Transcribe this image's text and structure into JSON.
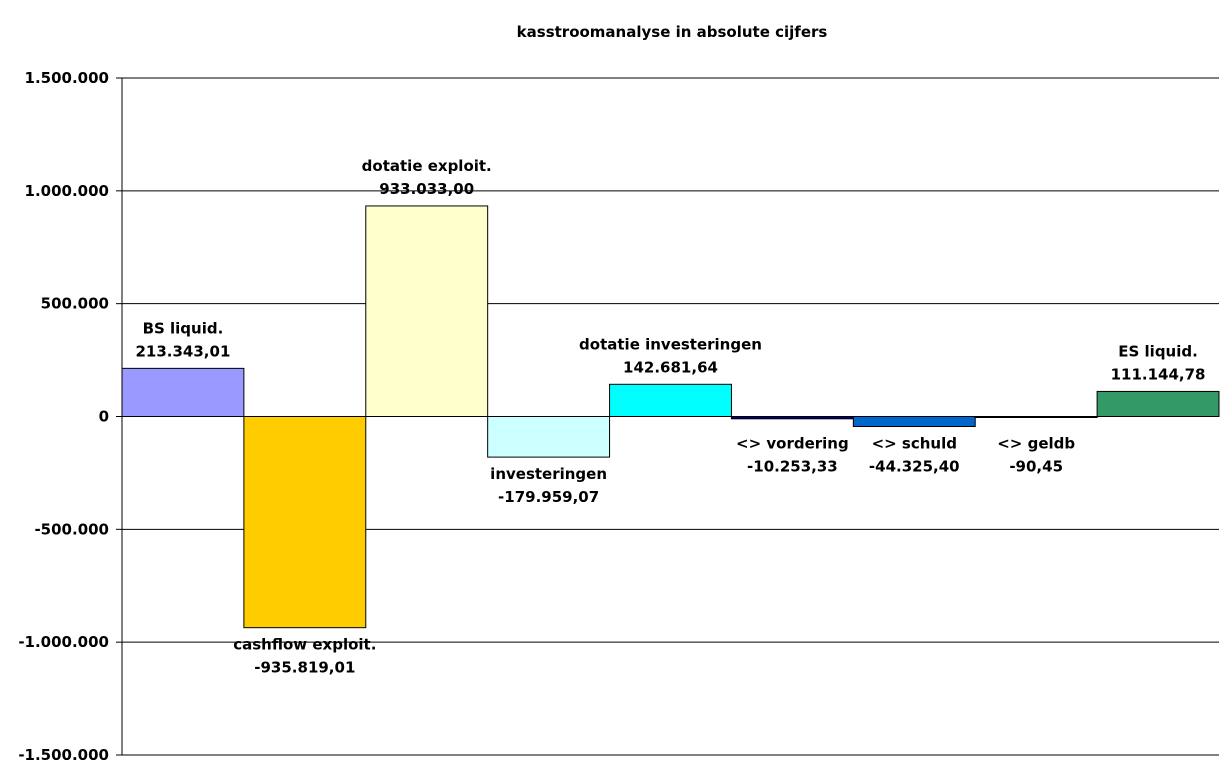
{
  "chart_data": {
    "type": "bar",
    "title": "kasstroomanalyse in absolute cijfers",
    "xlabel": "",
    "ylabel": "",
    "ylim": [
      -1500000,
      1500000
    ],
    "yticks": [
      {
        "value": 1500000,
        "label": "1.500.000"
      },
      {
        "value": 1000000,
        "label": "1.000.000"
      },
      {
        "value": 500000,
        "label": "500.000"
      },
      {
        "value": 0,
        "label": "0"
      },
      {
        "value": -500000,
        "label": "-500.000"
      },
      {
        "value": -1000000,
        "label": "-1.000.000"
      },
      {
        "value": -1500000,
        "label": "-1.500.000"
      }
    ],
    "grid": true,
    "legend": "none",
    "bars": [
      {
        "name": "BS liquid.",
        "value": 213343.01,
        "value_label": "213.343,01",
        "color": "#9999ff"
      },
      {
        "name": "cashflow exploit.",
        "value": -935819.01,
        "value_label": "-935.819,01",
        "color": "#ffcc00"
      },
      {
        "name": "dotatie exploit.",
        "value": 933033.0,
        "value_label": "933.033,00",
        "color": "#ffffcc"
      },
      {
        "name": "investeringen",
        "value": -179959.07,
        "value_label": "-179.959,07",
        "color": "#ccffff"
      },
      {
        "name": "dotatie investeringen",
        "value": 142681.64,
        "value_label": "142.681,64",
        "color": "#00ffff"
      },
      {
        "name": "<> vordering",
        "value": -10253.33,
        "value_label": "-10.253,33",
        "color": "#000080"
      },
      {
        "name": "<> schuld",
        "value": -44325.4,
        "value_label": "-44.325,40",
        "color": "#0066cc"
      },
      {
        "name": "<> geldb",
        "value": -90.45,
        "value_label": "-90,45",
        "color": "#339966"
      },
      {
        "name": "ES liquid.",
        "value": 111144.78,
        "value_label": "111.144,78",
        "color": "#339966"
      }
    ]
  }
}
